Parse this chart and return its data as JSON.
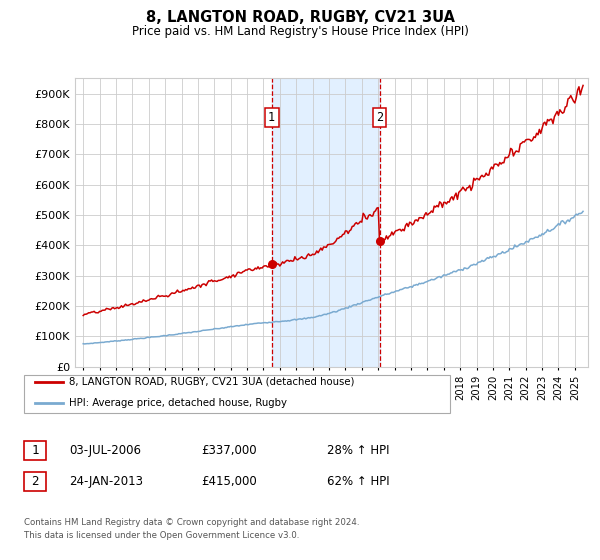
{
  "title": "8, LANGTON ROAD, RUGBY, CV21 3UA",
  "subtitle": "Price paid vs. HM Land Registry's House Price Index (HPI)",
  "ylim": [
    0,
    950000
  ],
  "yticks": [
    0,
    100000,
    200000,
    300000,
    400000,
    500000,
    600000,
    700000,
    800000,
    900000
  ],
  "ytick_labels": [
    "£0",
    "£100K",
    "£200K",
    "£300K",
    "£400K",
    "£500K",
    "£600K",
    "£700K",
    "£800K",
    "£900K"
  ],
  "transaction1": {
    "date_num": 2006.5,
    "price": 337000
  },
  "transaction2": {
    "date_num": 2013.08,
    "price": 415000
  },
  "hpi_color": "#7aaad0",
  "price_color": "#cc0000",
  "shade_color": "#ddeeff",
  "legend_property_label": "8, LANGTON ROAD, RUGBY, CV21 3UA (detached house)",
  "legend_hpi_label": "HPI: Average price, detached house, Rugby",
  "table_rows": [
    {
      "num": "1",
      "date": "03-JUL-2006",
      "price": "£337,000",
      "change": "28% ↑ HPI"
    },
    {
      "num": "2",
      "date": "24-JAN-2013",
      "price": "£415,000",
      "change": "62% ↑ HPI"
    }
  ],
  "footer": "Contains HM Land Registry data © Crown copyright and database right 2024.\nThis data is licensed under the Open Government Licence v3.0.",
  "background_color": "#ffffff",
  "grid_color": "#cccccc",
  "xlim_left": 1994.5,
  "xlim_right": 2025.8
}
